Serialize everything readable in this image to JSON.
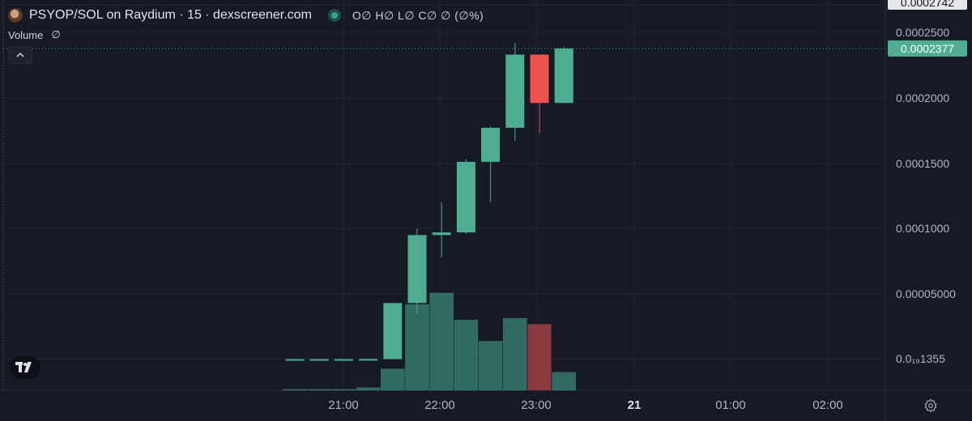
{
  "header": {
    "pair": "PSYOP/SOL on Raydium · 15 · dexscreener.com",
    "ohlc": "O∅ H∅ L∅ C∅ ∅ (∅%)"
  },
  "volume": {
    "label": "Volume",
    "value": "∅"
  },
  "icons": {
    "avatar": "token-avatar-icon",
    "status": "market-status-icon",
    "collapse": "chevron-up-icon",
    "logo": "tradingview-logo-icon",
    "settings": "gear-icon"
  },
  "colors": {
    "background": "#161a25",
    "up": "#4fae91",
    "down": "#ef5350",
    "volume_up": "#2f6b60",
    "volume_down": "#8a3a3f",
    "price_tag": "#4fae91"
  },
  "chart_data": {
    "type": "candlestick",
    "y_ticks": [
      "0.0002742",
      "0.0002500",
      "0.0002000",
      "0.0001500",
      "0.0001000",
      "0.00005000",
      "0.0₁₉1355"
    ],
    "x_ticks": [
      "21:00",
      "22:00",
      "23:00",
      "21",
      "01:00",
      "02:00"
    ],
    "last_price": "0.0002377",
    "candles": [
      {
        "time": "20:30",
        "open": 0.0,
        "high": 1e-07,
        "low": 0.0,
        "close": 1e-07,
        "volume": 1
      },
      {
        "time": "20:45",
        "open": 1e-07,
        "high": 1e-07,
        "low": 0.0,
        "close": 1e-07,
        "volume": 1
      },
      {
        "time": "21:00",
        "open": 1e-07,
        "high": 1e-07,
        "low": 0.0,
        "close": 1e-07,
        "volume": 1
      },
      {
        "time": "21:15",
        "open": 1e-07,
        "high": 2e-07,
        "low": 0.0,
        "close": 2e-07,
        "volume": 3
      },
      {
        "time": "21:30",
        "open": 1e-07,
        "high": 4.3e-05,
        "low": 1e-07,
        "close": 4.3e-05,
        "volume": 26
      },
      {
        "time": "21:45",
        "open": 4.3e-05,
        "high": 0.0001,
        "low": 3.5e-05,
        "close": 9.5e-05,
        "volume": 105
      },
      {
        "time": "22:00",
        "open": 9.5e-05,
        "high": 0.00012,
        "low": 7.8e-05,
        "close": 9.7e-05,
        "volume": 119
      },
      {
        "time": "22:15",
        "open": 9.7e-05,
        "high": 0.000153,
        "low": 9.6e-05,
        "close": 0.000151,
        "volume": 86
      },
      {
        "time": "22:30",
        "open": 0.000151,
        "high": 0.000178,
        "low": 0.00012,
        "close": 0.000177,
        "volume": 60
      },
      {
        "time": "22:45",
        "open": 0.000177,
        "high": 0.000242,
        "low": 0.000167,
        "close": 0.000233,
        "volume": 88
      },
      {
        "time": "23:00",
        "open": 0.000233,
        "high": 0.000233,
        "low": 0.000173,
        "close": 0.000196,
        "volume": 81
      },
      {
        "time": "23:15",
        "open": 0.000196,
        "high": 0.000239,
        "low": 0.000196,
        "close": 0.0002377,
        "volume": 22
      }
    ]
  }
}
